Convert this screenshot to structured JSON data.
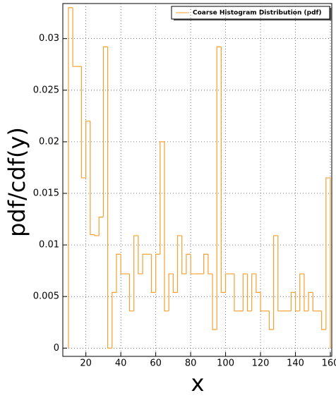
{
  "chart_data": {
    "type": "histogram",
    "legend_label": "Coarse Histogram Distribution (pdf)",
    "xlabel": "x",
    "ylabel": "pdf/cdf(y)",
    "color": "#f5a030",
    "grid": true,
    "legend": "upper right",
    "bins": [
      10,
      12.5,
      15,
      17.5,
      20,
      22.5,
      25,
      27.5,
      30,
      32.5,
      35,
      37.5,
      40,
      42.5,
      45,
      47.5,
      50,
      52.5,
      55,
      57.5,
      60,
      62.5,
      65,
      67.5,
      70,
      72.5,
      75,
      77.5,
      80,
      82.5,
      85,
      87.5,
      90,
      92.5,
      95,
      97.5,
      100,
      102.5,
      105,
      107.5,
      110,
      112.5,
      115,
      117.5,
      120,
      122.5,
      125,
      127.5,
      130,
      132.5,
      135,
      137.5,
      140,
      142.5,
      145,
      147.5,
      150,
      152.5,
      155,
      157.5,
      160
    ],
    "counts": [
      0.033,
      0.0273,
      0.0273,
      0.0165,
      0.022,
      0.011,
      0.0109,
      0.0127,
      0.0292,
      0,
      0.0054,
      0.0091,
      0.0072,
      0.0072,
      0.0036,
      0.0109,
      0.0072,
      0.0091,
      0.0091,
      0.0054,
      0.0091,
      0.02,
      0.0036,
      0.0072,
      0.0054,
      0.0109,
      0.0072,
      0.0091,
      0.0072,
      0.0072,
      0.0072,
      0.0091,
      0.0072,
      0.0018,
      0.0292,
      0.0054,
      0.0072,
      0.0072,
      0.0036,
      0.0036,
      0.0072,
      0.0036,
      0.0072,
      0.0054,
      0.0036,
      0.0036,
      0.0018,
      0.0109,
      0.0036,
      0.0036,
      0.0036,
      0.0054,
      0.0036,
      0.0072,
      0.0036,
      0.0054,
      0.0036,
      0.0036,
      0.0018,
      0.0165
    ],
    "xlim": [
      6.8,
      160.8
    ],
    "ylim": [
      -0.0008,
      0.0334
    ],
    "xticks": [
      20,
      40,
      60,
      80,
      100,
      120,
      140,
      160
    ],
    "yticks": [
      0,
      0.005,
      0.01,
      0.015,
      0.02,
      0.025,
      0.03
    ]
  }
}
